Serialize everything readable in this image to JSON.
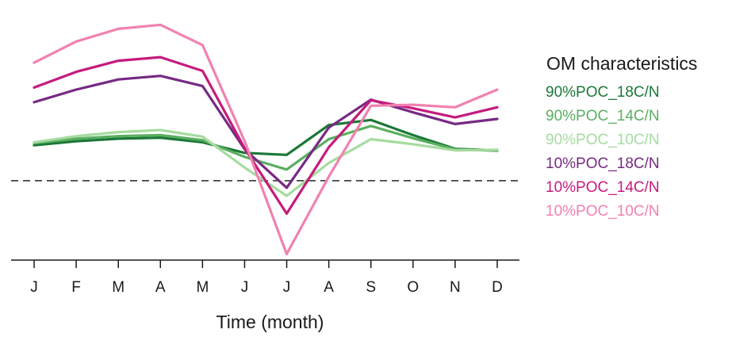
{
  "chart_data": {
    "type": "line",
    "xlabel": "Time (month)",
    "ylabel": "",
    "categories": [
      "J",
      "F",
      "M",
      "A",
      "M",
      "J",
      "J",
      "A",
      "S",
      "O",
      "N",
      "D"
    ],
    "ylim": [
      -1.6,
      3.1
    ],
    "y_axis_visible": false,
    "reference_line": {
      "y": 0,
      "style": "dashed",
      "color": "#444444"
    },
    "legend": {
      "title": "OM characteristics",
      "placement": "right",
      "swatch": "colored-text"
    },
    "series": [
      {
        "name": "90%POC_18C/N",
        "color": "#1b7837",
        "values": [
          0.7,
          0.78,
          0.83,
          0.85,
          0.76,
          0.55,
          0.51,
          1.1,
          1.2,
          0.9,
          0.63,
          0.6
        ]
      },
      {
        "name": "90%POC_14C/N",
        "color": "#5aae61",
        "values": [
          0.74,
          0.83,
          0.88,
          0.9,
          0.8,
          0.47,
          0.22,
          0.82,
          1.08,
          0.84,
          0.62,
          0.59
        ]
      },
      {
        "name": "90%POC_10C/N",
        "color": "#a6dba0",
        "values": [
          0.76,
          0.88,
          0.96,
          1.0,
          0.87,
          0.26,
          -0.3,
          0.35,
          0.82,
          0.72,
          0.6,
          0.61
        ]
      },
      {
        "name": "10%POC_18C/N",
        "color": "#762a83",
        "values": [
          1.55,
          1.8,
          2.0,
          2.07,
          1.87,
          0.62,
          -0.14,
          1.05,
          1.6,
          1.35,
          1.12,
          1.22
        ]
      },
      {
        "name": "10%POC_14C/N",
        "color": "#c51b7d",
        "values": [
          1.84,
          2.15,
          2.37,
          2.44,
          2.17,
          0.64,
          -0.65,
          0.66,
          1.59,
          1.43,
          1.25,
          1.45
        ]
      },
      {
        "name": "10%POC_10C/N",
        "color": "#f181b0",
        "values": [
          2.33,
          2.75,
          3.0,
          3.08,
          2.68,
          0.78,
          -1.45,
          0.08,
          1.48,
          1.5,
          1.45,
          1.8
        ]
      }
    ]
  }
}
